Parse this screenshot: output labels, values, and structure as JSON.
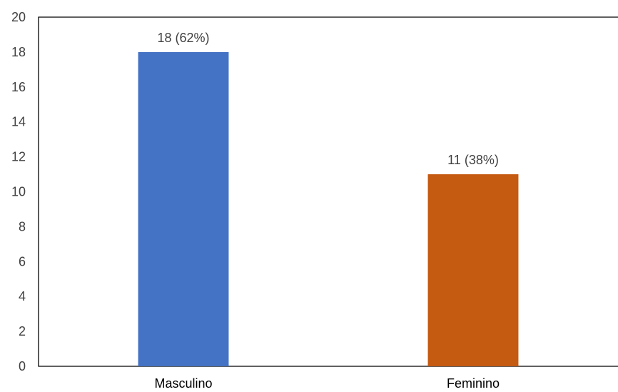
{
  "chart_data": {
    "type": "bar",
    "categories": [
      "Masculino",
      "Feminino"
    ],
    "values": [
      18,
      11
    ],
    "data_labels": [
      "18 (62%)",
      "11 (38%)"
    ],
    "colors": [
      "#4472C4",
      "#C55A11"
    ],
    "yticks": [
      "0",
      "2",
      "4",
      "6",
      "8",
      "10",
      "12",
      "14",
      "16",
      "18",
      "20"
    ],
    "ylim": [
      0,
      20
    ],
    "grid": false,
    "legend": "none"
  }
}
